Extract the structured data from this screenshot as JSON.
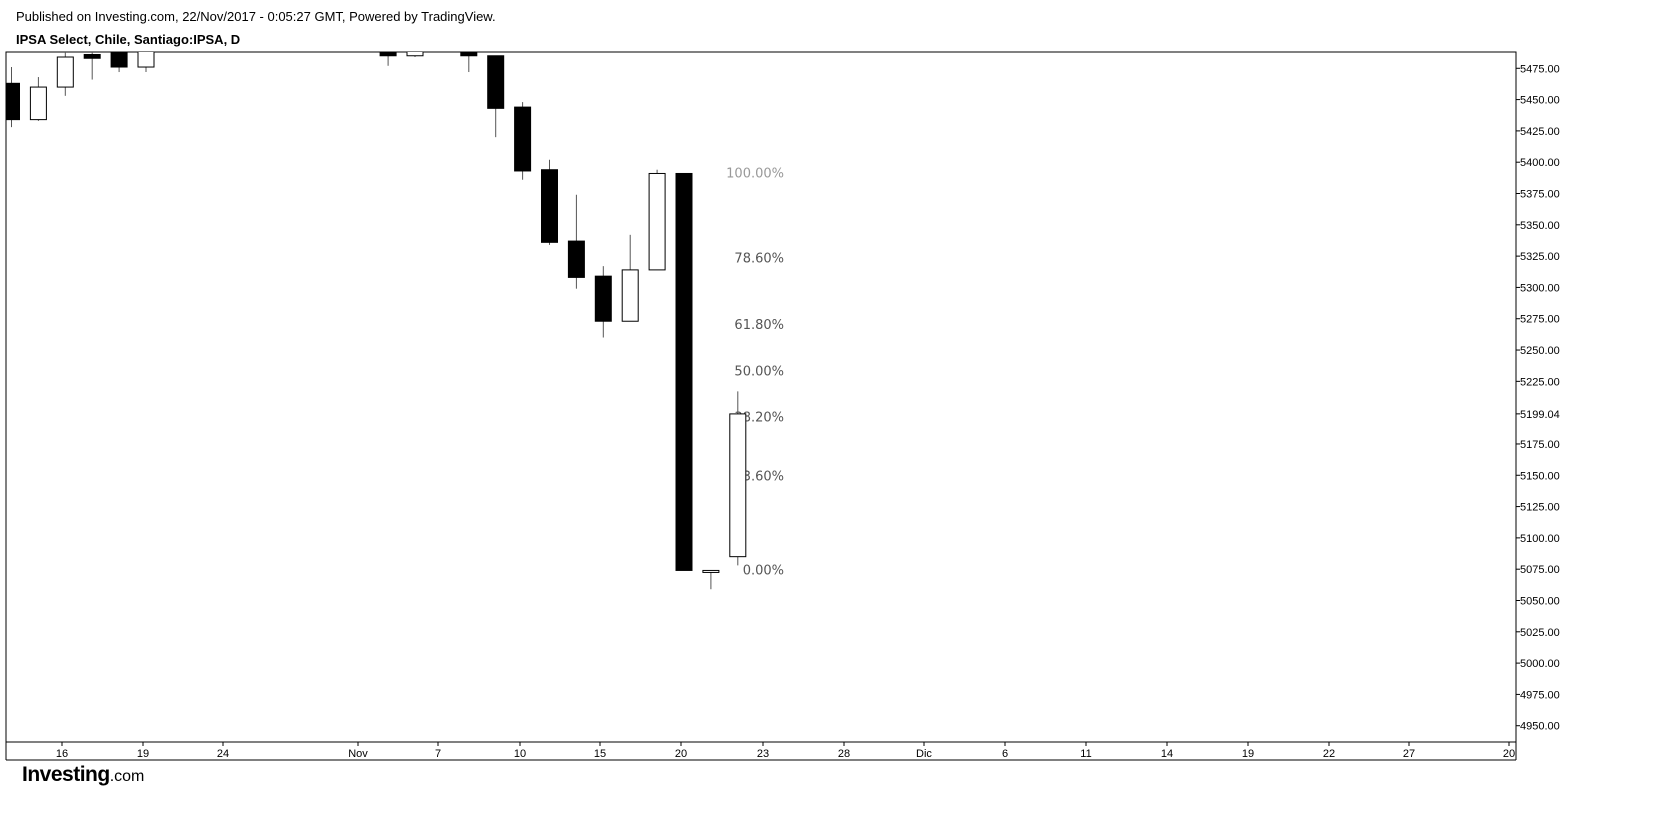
{
  "header": {
    "published": "Published on Investing.com, 22/Nov/2017 - 0:05:27 GMT, Powered by TradingView.",
    "symbol": "IPSA Select, Chile, Santiago:IPSA, D"
  },
  "brand": {
    "name": "Investing",
    "suffix": ".com"
  },
  "colors": {
    "axis": "#000000",
    "down_body": "#000000",
    "up_body": "#ffffff",
    "wick": "#555555",
    "fib_label": "#555555",
    "fib_top_label": "#999999",
    "last_price_box": "#ffffff"
  },
  "chart_data": {
    "type": "candlestick",
    "ylim": [
      4937,
      5488
    ],
    "y_ticks": [
      4950,
      4975,
      5000,
      5025,
      5050,
      5075,
      5100,
      5125,
      5150,
      5175,
      5225,
      5250,
      5275,
      5300,
      5325,
      5350,
      5375,
      5400,
      5425,
      5450,
      5475
    ],
    "y_tick_labels": [
      "4950.00",
      "4975.00",
      "5000.00",
      "5025.00",
      "5050.00",
      "5075.00",
      "5100.00",
      "5125.00",
      "5150.00",
      "5175.00",
      "5225.00",
      "5250.00",
      "5275.00",
      "5300.00",
      "5325.00",
      "5350.00",
      "5375.00",
      "5400.00",
      "5425.00",
      "5450.00",
      "5475.00"
    ],
    "last_price": 5199.04,
    "last_price_label": "5199.04",
    "x_ticks": [
      "16",
      "19",
      "24",
      "Nov",
      "7",
      "10",
      "15",
      "20",
      "23",
      "28",
      "Dic",
      "6",
      "11",
      "14",
      "19",
      "22",
      "27",
      "20"
    ],
    "candles": [
      {
        "date": "2017-10-13",
        "open": 5463,
        "high": 5476,
        "low": 5428,
        "close": 5434
      },
      {
        "date": "2017-10-16",
        "open": 5434,
        "high": 5468,
        "low": 5433,
        "close": 5460
      },
      {
        "date": "2017-10-17",
        "open": 5460,
        "high": 5490,
        "low": 5453,
        "close": 5484
      },
      {
        "date": "2017-10-18",
        "open": 5486,
        "high": 5498,
        "low": 5466,
        "close": 5483
      },
      {
        "date": "2017-10-19",
        "open": 5500,
        "high": 5505,
        "low": 5472,
        "close": 5476
      },
      {
        "date": "2017-10-20",
        "open": 5476,
        "high": 5500,
        "low": 5472,
        "close": 5495
      },
      {
        "date": "2017-10-31",
        "open": 5490,
        "high": 5495,
        "low": 5477,
        "close": 5485
      },
      {
        "date": "2017-11-02",
        "open": 5485,
        "high": 5495,
        "low": 5484,
        "close": 5492
      },
      {
        "date": "2017-11-06",
        "open": 5494,
        "high": 5496,
        "low": 5488,
        "close": 5490
      },
      {
        "date": "2017-11-07",
        "open": 5492,
        "high": 5496,
        "low": 5472,
        "close": 5485
      },
      {
        "date": "2017-11-08",
        "open": 5485,
        "high": 5485,
        "low": 5420,
        "close": 5443
      },
      {
        "date": "2017-11-09",
        "open": 5444,
        "high": 5448,
        "low": 5386,
        "close": 5393
      },
      {
        "date": "2017-11-10",
        "open": 5394,
        "high": 5402,
        "low": 5334,
        "close": 5336
      },
      {
        "date": "2017-11-13",
        "open": 5337,
        "high": 5374,
        "low": 5299,
        "close": 5308
      },
      {
        "date": "2017-11-14",
        "open": 5309,
        "high": 5317,
        "low": 5260,
        "close": 5273
      },
      {
        "date": "2017-11-15",
        "open": 5273,
        "high": 5342,
        "low": 5273,
        "close": 5314
      },
      {
        "date": "2017-11-16",
        "open": 5314,
        "high": 5394,
        "low": 5314,
        "close": 5391
      },
      {
        "date": "2017-11-17",
        "open": 5391,
        "high": 5391,
        "low": 5074,
        "close": 5074
      },
      {
        "date": "2017-11-20",
        "open": 5074,
        "high": 5074,
        "low": 5059,
        "close": 5074
      },
      {
        "date": "2017-11-21",
        "open": 5085,
        "high": 5217,
        "low": 5078,
        "close": 5199
      }
    ],
    "fibonacci": {
      "levels": [
        {
          "label": "100.00%",
          "value": 5391
        },
        {
          "label": "78.60%",
          "value": 5323
        },
        {
          "label": "61.80%",
          "value": 5270
        },
        {
          "label": "50.00%",
          "value": 5233
        },
        {
          "label": "38.20%",
          "value": 5196
        },
        {
          "label": "23.60%",
          "value": 5149
        },
        {
          "label": "0.00%",
          "value": 5074
        }
      ]
    }
  }
}
